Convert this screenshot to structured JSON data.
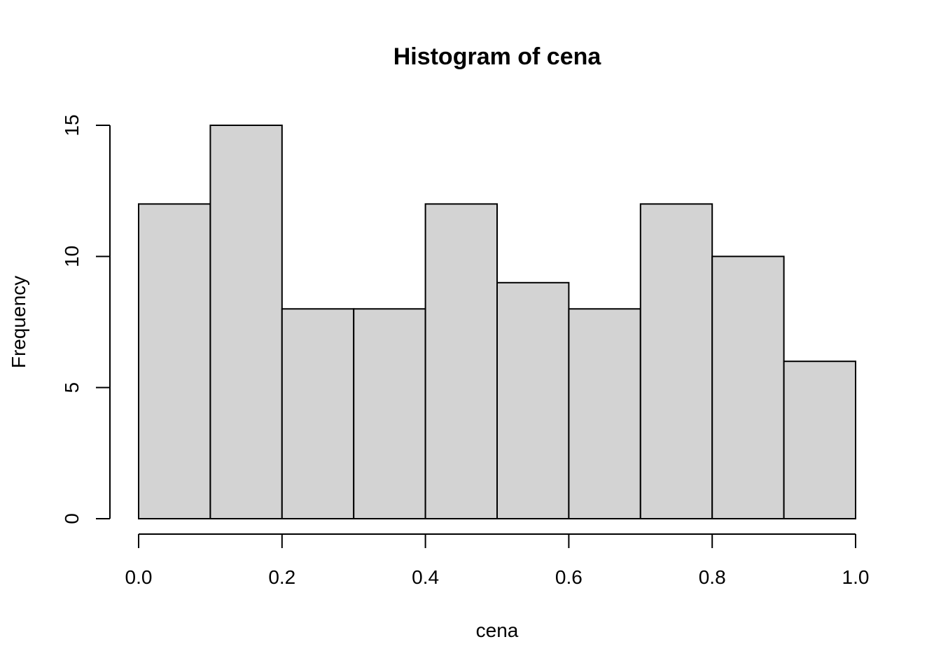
{
  "chart_data": {
    "type": "bar",
    "title": "Histogram of cena",
    "xlabel": "cena",
    "ylabel": "Frequency",
    "bins": [
      {
        "start": 0.0,
        "end": 0.1,
        "count": 12
      },
      {
        "start": 0.1,
        "end": 0.2,
        "count": 15
      },
      {
        "start": 0.2,
        "end": 0.3,
        "count": 8
      },
      {
        "start": 0.3,
        "end": 0.4,
        "count": 8
      },
      {
        "start": 0.4,
        "end": 0.5,
        "count": 12
      },
      {
        "start": 0.5,
        "end": 0.6,
        "count": 9
      },
      {
        "start": 0.6,
        "end": 0.7,
        "count": 8
      },
      {
        "start": 0.7,
        "end": 0.8,
        "count": 12
      },
      {
        "start": 0.8,
        "end": 0.9,
        "count": 10
      },
      {
        "start": 0.9,
        "end": 1.0,
        "count": 6
      }
    ],
    "xlim": [
      0,
      1
    ],
    "ylim": [
      0,
      15
    ],
    "x_ticks": [
      0.0,
      0.2,
      0.4,
      0.6,
      0.8,
      1.0
    ],
    "x_tick_labels": [
      "0.0",
      "0.2",
      "0.4",
      "0.6",
      "0.8",
      "1.0"
    ],
    "y_ticks": [
      0,
      5,
      10,
      15
    ],
    "y_tick_labels": [
      "0",
      "5",
      "10",
      "15"
    ],
    "grid": false,
    "legend": "none",
    "bar_color": "#d3d3d3",
    "border_color": "#000000"
  }
}
